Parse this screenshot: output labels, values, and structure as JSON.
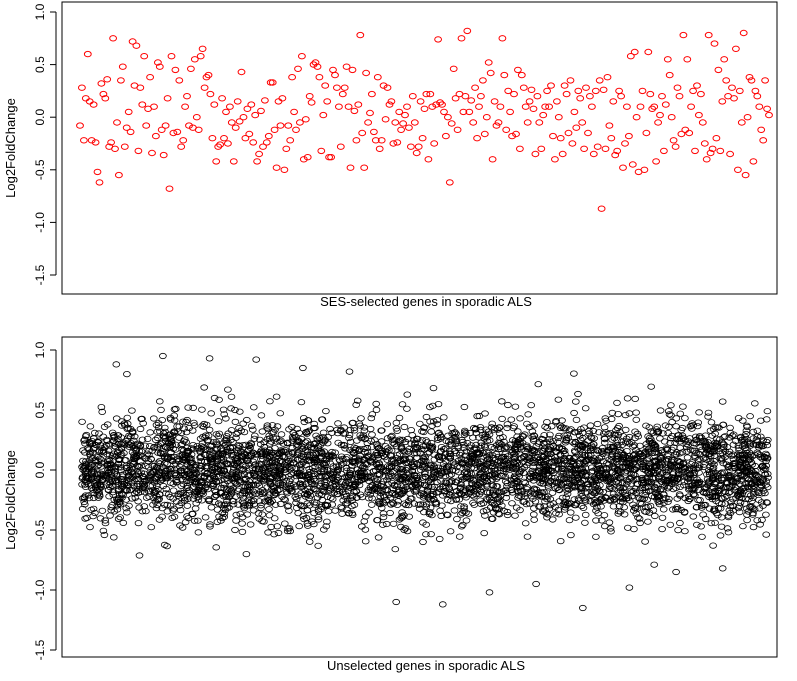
{
  "chart_data": [
    {
      "type": "scatter",
      "title": "",
      "xlabel": "SES-selected genes in sporadic ALS",
      "ylabel": "Log2FoldChange",
      "ylim": [
        -1.5,
        1.0
      ],
      "yticks": [
        "-1.5",
        "-1.0",
        "-0.5",
        "0.0",
        "0.5",
        "1.0"
      ],
      "ytick_values": [
        -1.5,
        -1.0,
        -0.5,
        0.0,
        0.5,
        1.0
      ],
      "point_color": "#ff0000",
      "x_axis": "gene index (no ticks shown)",
      "series": [
        {
          "values": [
            -0.08,
            0.28,
            -0.22,
            0.18,
            0.6,
            0.15,
            -0.22,
            0.12,
            -0.24,
            -0.52,
            -0.62,
            0.32,
            0.22,
            0.18,
            0.36,
            -0.28,
            -0.24,
            0.75,
            -0.3,
            -0.05,
            -0.55,
            0.35,
            0.48,
            -0.28,
            -0.1,
            0.05,
            -0.14,
            0.72,
            0.3,
            0.68,
            -0.32,
            0.28,
            0.12,
            0.58,
            -0.08,
            0.08,
            0.38,
            -0.34,
            0.1,
            -0.18,
            0.52,
            0.48,
            -0.12,
            -0.36,
            -0.08,
            0.18,
            -0.68,
            0.58,
            -0.15,
            0.45,
            -0.14,
            0.35,
            -0.28,
            -0.22,
            0.1,
            0.2,
            -0.08,
            0.46,
            -0.1,
            0.55,
            0.0,
            -0.12,
            0.58,
            0.65,
            0.28,
            0.38,
            0.4,
            0.22,
            -0.2,
            0.12,
            -0.42,
            -0.28,
            -0.26,
            0.18,
            -0.2,
            0.05,
            -0.25,
            0.1,
            -0.05,
            -0.42,
            -0.1,
            0.15,
            -0.04,
            0.43,
            0.0,
            -0.2,
            0.08,
            -0.16,
            0.12,
            -0.24,
            0.02,
            -0.42,
            -0.35,
            0.06,
            -0.28,
            0.16,
            -0.24,
            -0.18,
            0.33,
            0.33,
            -0.12,
            -0.48,
            0.15,
            -0.08,
            0.18,
            -0.5,
            -0.3,
            -0.08,
            -0.22,
            0.38,
            0.05,
            -0.12,
            0.46,
            -0.05,
            0.58,
            -0.4,
            -0.02,
            -0.38,
            0.2,
            0.14,
            0.5,
            0.52,
            0.48,
            0.38,
            -0.32,
            0.02,
            0.3,
            0.15,
            -0.38,
            -0.38,
            0.45,
            0.4,
            0.28,
            0.1,
            -0.28,
            0.22,
            0.28,
            0.48,
            0.1,
            -0.48,
            0.45,
            0.06,
            -0.22,
            0.12,
            0.78,
            -0.15,
            -0.48,
            0.42,
            -0.05,
            0.04,
            0.22,
            -0.14,
            -0.22,
            0.38,
            -0.3,
            -0.22,
            0.3,
            -0.02,
            0.28,
            0.12,
            0.15,
            -0.25,
            -0.05,
            -0.24,
            0.05,
            -0.12,
            -0.06,
            0.02,
            0.1,
            -0.1,
            -0.28,
            0.2,
            -0.05,
            -0.34,
            -0.28,
            0.15,
            -0.2,
            0.08,
            0.22,
            -0.4,
            0.22,
            0.1,
            -0.25,
            0.12,
            0.74,
            0.14,
            0.12,
            0.05,
            -0.18,
            0.0,
            -0.62,
            -0.06,
            0.46,
            0.18,
            -0.12,
            0.22,
            0.75,
            0.05,
            0.2,
            0.82,
            0.05,
            0.16,
            -0.05,
            0.28,
            -0.2,
            0.1,
            0.2,
            0.35,
            -0.16,
            0.0,
            0.52,
            0.42,
            -0.4,
            0.15,
            -0.08,
            -0.05,
            0.1,
            0.75,
            0.4,
            -0.12,
            0.25,
            0.05,
            -0.18,
            0.22,
            -0.16,
            0.45,
            -0.3,
            0.4,
            0.28,
            0.1,
            -0.05,
            0.15,
            0.26,
            0.08,
            -0.35,
            0.2,
            -0.05,
            -0.3,
            0.02,
            0.1,
            0.25,
            0.1,
            0.3,
            -0.18,
            -0.4,
            0.15,
            0.0,
            -0.2,
            -0.35,
            0.3,
            0.22,
            -0.15,
            0.35,
            -0.25,
            0.05,
            -0.1,
            0.25,
            0.18,
            -0.05,
            -0.3,
            0.28,
            -0.15,
            0.2,
            0.1,
            -0.35,
            0.25,
            -0.28,
            0.35,
            -0.87,
            0.26,
            -0.3,
            0.38,
            -0.08,
            -0.2,
            0.15,
            -0.36,
            -0.32,
            0.25,
            0.2,
            -0.48,
            -0.25,
            0.1,
            -0.18,
            0.58,
            -0.45,
            0.62,
            0.0,
            -0.52,
            0.1,
            0.25,
            -0.5,
            -0.15,
            0.62,
            0.22,
            0.08,
            0.1,
            -0.42,
            -0.05,
            0.02,
            0.2,
            -0.32,
            0.12,
            0.55,
            0.4,
            0.0,
            -0.22,
            -0.28,
            0.28,
            0.2,
            -0.16,
            0.78,
            -0.12,
            0.55,
            -0.15,
            0.1,
            0.25,
            -0.32,
            0.3,
            0.02,
            0.22,
            -0.05,
            -0.25,
            -0.4,
            0.78,
            -0.34,
            -0.3,
            0.7,
            -0.2,
            0.45,
            -0.32,
            0.15,
            0.55,
            0.35,
            0.2,
            -0.35,
            0.28,
            0.18,
            0.65,
            -0.5,
            0.25,
            -0.05,
            0.8,
            -0.55,
            0.0,
            0.38,
            0.35,
            -0.42,
            0.25,
            0.2,
            0.1,
            -0.12,
            -0.22,
            0.35,
            0.08,
            0.02
          ]
        }
      ]
    },
    {
      "type": "scatter",
      "title": "",
      "xlabel": "Unselected genes in sporadic ALS",
      "ylabel": "Log2FoldChange",
      "ylim": [
        -1.5,
        1.0
      ],
      "yticks": [
        "-1.5",
        "-1.0",
        "-0.5",
        "0.0",
        "0.5",
        "1.0"
      ],
      "ytick_values": [
        -1.5,
        -1.0,
        -0.5,
        0.0,
        0.5,
        1.0
      ],
      "point_color": "#000000",
      "x_axis": "gene index (no ticks shown)",
      "series": [
        {
          "distribution": "dense cloud of several thousand genes centred on 0.0 with standard deviation about 0.2; most values between -0.6 and 0.6",
          "notable_points": [
            0.88,
            0.95,
            0.93,
            0.92,
            0.85,
            0.82,
            -1.1,
            -1.12,
            -1.02,
            -0.95,
            -1.15,
            -0.98,
            -0.85,
            -0.82
          ]
        }
      ]
    }
  ]
}
